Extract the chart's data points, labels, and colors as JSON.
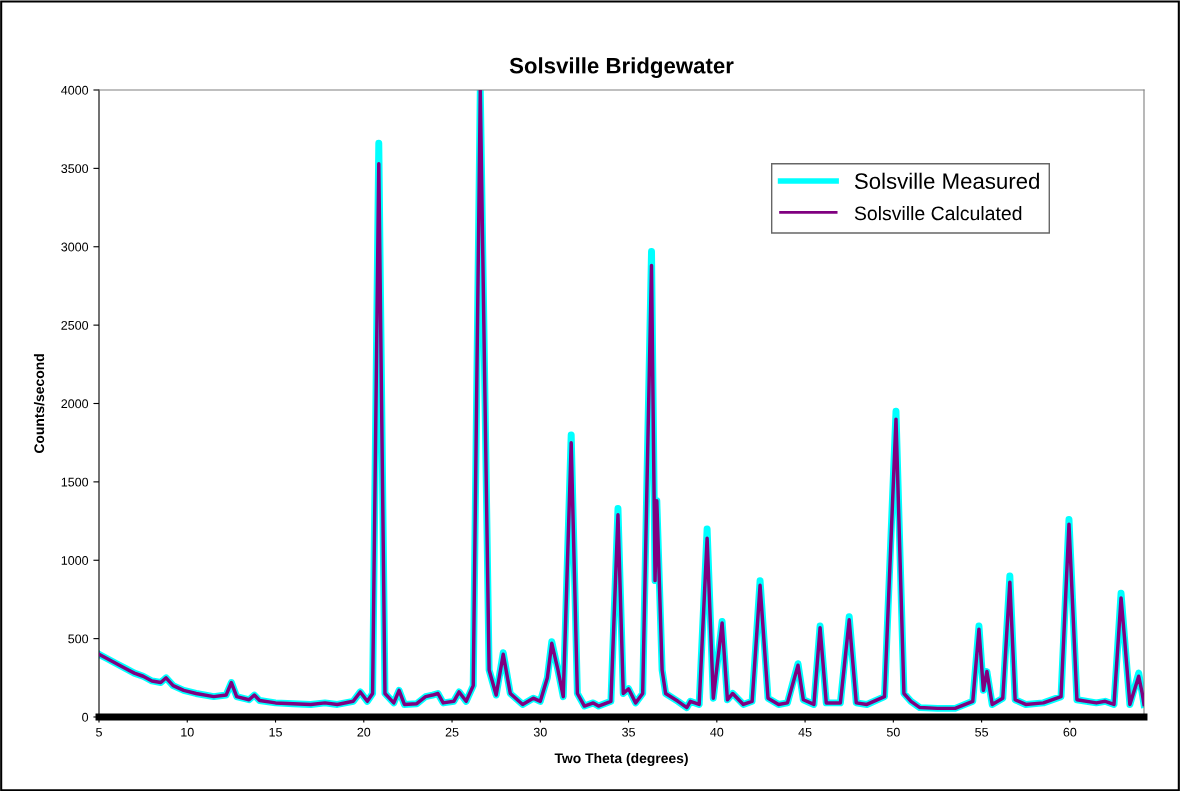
{
  "chart_data": {
    "type": "line",
    "title": "Solsville Bridgewater",
    "xlabel": "Two Theta (degrees)",
    "ylabel": "Counts/second",
    "x": [
      5.0,
      5.5,
      6.0,
      6.5,
      7.0,
      7.5,
      8.0,
      8.5,
      8.8,
      9.2,
      9.8,
      10.5,
      11.5,
      12.2,
      12.5,
      12.8,
      13.5,
      13.8,
      14.1,
      15,
      16,
      17,
      17.8,
      18.5,
      19.4,
      19.8,
      20.2,
      20.5,
      20.85,
      21.2,
      21.7,
      22.0,
      22.3,
      23,
      23.5,
      23.9,
      24.2,
      24.5,
      25.1,
      25.4,
      25.8,
      26.2,
      26.6,
      27.1,
      27.5,
      27.9,
      28.3,
      29,
      29.6,
      30.0,
      30.4,
      30.65,
      31.0,
      31.3,
      31.75,
      32.1,
      32.5,
      33.0,
      33.3,
      34.0,
      34.4,
      34.7,
      35.0,
      35.4,
      35.8,
      36.3,
      36.5,
      36.6,
      36.9,
      37.1,
      37.8,
      38.3,
      38.5,
      39.0,
      39.45,
      39.8,
      40.3,
      40.6,
      40.9,
      41.5,
      42.0,
      42.45,
      42.9,
      43.5,
      44.0,
      44.6,
      44.9,
      45.5,
      45.85,
      46.2,
      47.0,
      47.5,
      47.9,
      48.5,
      49.5,
      50.15,
      50.6,
      51.0,
      51.5,
      52.5,
      53.5,
      54.5,
      54.85,
      55.1,
      55.3,
      55.6,
      56.2,
      56.6,
      56.9,
      57.5,
      58.5,
      59.5,
      59.95,
      60.4,
      61.5,
      62.0,
      62.5,
      62.9,
      63.1,
      63.4,
      63.9,
      64.1,
      64.2
    ],
    "series": [
      {
        "name": "Solsville Measured",
        "color": "#00ffff",
        "values": [
          400,
          370,
          340,
          310,
          280,
          260,
          230,
          220,
          250,
          200,
          170,
          150,
          130,
          140,
          220,
          130,
          110,
          140,
          105,
          90,
          85,
          80,
          90,
          80,
          100,
          160,
          100,
          150,
          3660,
          150,
          90,
          170,
          80,
          85,
          130,
          140,
          150,
          90,
          100,
          160,
          100,
          200,
          4000,
          300,
          140,
          410,
          150,
          80,
          120,
          100,
          250,
          480,
          300,
          130,
          1800,
          150,
          70,
          90,
          70,
          100,
          1330,
          150,
          180,
          90,
          150,
          2970,
          870,
          1380,
          300,
          150,
          100,
          60,
          100,
          80,
          1200,
          120,
          610,
          110,
          150,
          80,
          100,
          870,
          120,
          80,
          90,
          340,
          110,
          80,
          580,
          90,
          90,
          640,
          90,
          80,
          130,
          1950,
          150,
          100,
          60,
          55,
          55,
          100,
          580,
          170,
          290,
          80,
          120,
          900,
          110,
          80,
          90,
          130,
          1260,
          110,
          90,
          100,
          80,
          790,
          500,
          80,
          280,
          150,
          80
        ]
      },
      {
        "name": "Solsville Calculated",
        "color": "#800080",
        "values": [
          400,
          370,
          340,
          310,
          280,
          260,
          230,
          220,
          250,
          200,
          170,
          150,
          130,
          140,
          220,
          130,
          110,
          140,
          105,
          90,
          85,
          80,
          90,
          80,
          100,
          160,
          100,
          150,
          3530,
          150,
          90,
          170,
          80,
          85,
          130,
          140,
          150,
          90,
          100,
          160,
          100,
          200,
          4000,
          300,
          140,
          400,
          150,
          80,
          120,
          100,
          250,
          470,
          300,
          130,
          1750,
          150,
          70,
          90,
          70,
          100,
          1290,
          150,
          180,
          90,
          150,
          2880,
          870,
          1380,
          300,
          150,
          100,
          60,
          100,
          80,
          1140,
          120,
          600,
          110,
          150,
          80,
          100,
          840,
          120,
          80,
          90,
          330,
          110,
          80,
          570,
          90,
          90,
          620,
          90,
          80,
          130,
          1900,
          150,
          100,
          60,
          55,
          55,
          100,
          560,
          170,
          290,
          80,
          120,
          860,
          110,
          80,
          90,
          130,
          1230,
          110,
          90,
          100,
          80,
          760,
          500,
          80,
          260,
          150,
          80
        ]
      }
    ],
    "xlim": [
      5,
      64.2
    ],
    "xticks": [
      5,
      10,
      15,
      20,
      25,
      30,
      35,
      40,
      45,
      50,
      55,
      60
    ],
    "ylim": [
      0,
      4000
    ],
    "yticks": [
      0,
      500,
      1000,
      1500,
      2000,
      2500,
      3000,
      3500,
      4000
    ],
    "grid": false,
    "legend": "top right",
    "marker": "none",
    "line_style": "solid"
  }
}
